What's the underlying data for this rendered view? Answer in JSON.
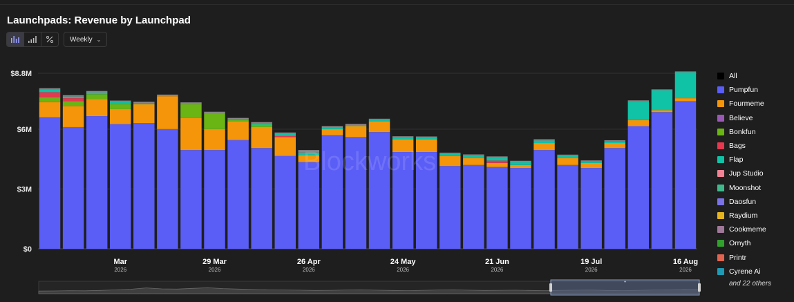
{
  "header": {
    "title": "Launchpads: Revenue by Launchpad"
  },
  "toolbar": {
    "buttons": [
      {
        "name": "stacked-bar-view",
        "icon": "stacked-bar-icon",
        "active": true
      },
      {
        "name": "bar-view",
        "icon": "bar-chart-icon",
        "active": false
      },
      {
        "name": "percent-view",
        "icon": "percent-icon",
        "active": false
      }
    ],
    "interval_label": "Weekly"
  },
  "watermark": "Blockworks",
  "legend": {
    "items": [
      {
        "label": "All",
        "color": "#000000"
      },
      {
        "label": "Pumpfun",
        "color": "#5a5df6"
      },
      {
        "label": "Fourmeme",
        "color": "#f5960a"
      },
      {
        "label": "Believe",
        "color": "#9b59b6"
      },
      {
        "label": "Bonkfun",
        "color": "#6ab414"
      },
      {
        "label": "Bags",
        "color": "#e6384f"
      },
      {
        "label": "Flap",
        "color": "#10c2a6"
      },
      {
        "label": "Jup Studio",
        "color": "#f08296"
      },
      {
        "label": "Moonshot",
        "color": "#40b88c"
      },
      {
        "label": "Daosfun",
        "color": "#7a72e6"
      },
      {
        "label": "Raydium",
        "color": "#e6b41e"
      },
      {
        "label": "Cookmeme",
        "color": "#a07898"
      },
      {
        "label": "Ornyth",
        "color": "#32a02d"
      },
      {
        "label": "Printr",
        "color": "#e06450"
      },
      {
        "label": "Cyrene Ai",
        "color": "#1e9ab4"
      }
    ],
    "more_label": "and 22 others"
  },
  "chart_data": {
    "type": "bar",
    "stacked": true,
    "title": "Launchpads: Revenue by Launchpad",
    "interval": "Weekly",
    "ylim": [
      0,
      8800000
    ],
    "yticks": [
      {
        "value": 0,
        "label": "$0"
      },
      {
        "value": 3000000,
        "label": "$3M"
      },
      {
        "value": 6000000,
        "label": "$6M"
      },
      {
        "value": 8800000,
        "label": "$8.8M"
      }
    ],
    "x_tick_labels": [
      {
        "index": 3.5,
        "label": "Mar",
        "sub": "2026"
      },
      {
        "index": 7.5,
        "label": "29 Mar",
        "sub": "2026"
      },
      {
        "index": 11.5,
        "label": "26 Apr",
        "sub": "2026"
      },
      {
        "index": 15.5,
        "label": "24 May",
        "sub": "2026"
      },
      {
        "index": 19.5,
        "label": "21 Jun",
        "sub": "2026"
      },
      {
        "index": 23.5,
        "label": "19 Jul",
        "sub": "2026"
      },
      {
        "index": 27.5,
        "label": "16 Aug",
        "sub": "2026"
      }
    ],
    "grid": true,
    "legend_position": "right",
    "bar_count": 28,
    "series": [
      {
        "name": "Pumpfun",
        "color": "#5a5df6",
        "values": [
          6600000,
          6100000,
          6650000,
          6250000,
          6300000,
          6000000,
          4950000,
          4950000,
          5450000,
          5050000,
          4650000,
          4350000,
          5700000,
          5600000,
          5850000,
          4850000,
          4850000,
          4150000,
          4200000,
          4100000,
          4050000,
          4950000,
          4200000,
          4050000,
          5050000,
          6150000,
          6850000,
          7400000
        ]
      },
      {
        "name": "Fourmeme",
        "color": "#f5960a",
        "values": [
          750000,
          1050000,
          850000,
          750000,
          950000,
          1650000,
          1600000,
          1050000,
          950000,
          1050000,
          950000,
          350000,
          300000,
          550000,
          550000,
          650000,
          650000,
          500000,
          350000,
          200000,
          150000,
          350000,
          350000,
          250000,
          250000,
          300000,
          100000,
          150000
        ]
      },
      {
        "name": "Believe",
        "color": "#9b59b6",
        "values": [
          0,
          0,
          0,
          0,
          0,
          0,
          0,
          0,
          0,
          0,
          0,
          0,
          0,
          0,
          0,
          0,
          0,
          0,
          0,
          0,
          0,
          0,
          0,
          0,
          0,
          0,
          0,
          0
        ]
      },
      {
        "name": "Bonkfun",
        "color": "#6ab414",
        "values": [
          250000,
          250000,
          250000,
          250000,
          0,
          0,
          700000,
          800000,
          50000,
          120000,
          0,
          0,
          0,
          0,
          0,
          0,
          0,
          0,
          0,
          0,
          0,
          0,
          0,
          0,
          0,
          0,
          0,
          0
        ]
      },
      {
        "name": "Bags",
        "color": "#e6384f",
        "values": [
          250000,
          150000,
          0,
          0,
          0,
          0,
          0,
          0,
          0,
          0,
          50000,
          0,
          0,
          0,
          0,
          0,
          0,
          0,
          0,
          120000,
          0,
          0,
          0,
          0,
          0,
          0,
          0,
          0
        ]
      },
      {
        "name": "Flap",
        "color": "#10c2a6",
        "values": [
          120000,
          80000,
          80000,
          120000,
          50000,
          0,
          0,
          0,
          50000,
          80000,
          120000,
          120000,
          80000,
          50000,
          50000,
          80000,
          80000,
          120000,
          120000,
          150000,
          150000,
          120000,
          120000,
          80000,
          80000,
          950000,
          1000000,
          1300000
        ]
      },
      {
        "name": "Jup Studio",
        "color": "#f08296",
        "values": [
          0,
          0,
          0,
          0,
          0,
          0,
          0,
          0,
          0,
          0,
          0,
          0,
          0,
          0,
          0,
          0,
          0,
          0,
          0,
          0,
          0,
          0,
          0,
          0,
          0,
          0,
          0,
          0
        ]
      },
      {
        "name": "Moonshot",
        "color": "#40b88c",
        "values": [
          0,
          0,
          0,
          0,
          0,
          0,
          0,
          0,
          0,
          0,
          0,
          0,
          0,
          0,
          0,
          0,
          0,
          0,
          0,
          0,
          0,
          0,
          0,
          0,
          0,
          0,
          0,
          0
        ]
      },
      {
        "name": "Daosfun",
        "color": "#7a72e6",
        "values": [
          0,
          0,
          0,
          0,
          0,
          0,
          0,
          0,
          0,
          0,
          0,
          0,
          0,
          0,
          0,
          0,
          0,
          0,
          0,
          0,
          0,
          0,
          0,
          0,
          0,
          0,
          0,
          0
        ]
      },
      {
        "name": "Raydium",
        "color": "#e6b41e",
        "values": [
          0,
          0,
          0,
          0,
          0,
          0,
          0,
          0,
          0,
          0,
          0,
          0,
          0,
          0,
          0,
          0,
          0,
          0,
          0,
          0,
          0,
          0,
          0,
          0,
          0,
          0,
          0,
          0
        ]
      },
      {
        "name": "Cookmeme",
        "color": "#a07898",
        "values": [
          0,
          0,
          0,
          0,
          0,
          0,
          0,
          0,
          0,
          0,
          0,
          0,
          0,
          0,
          0,
          0,
          0,
          0,
          0,
          0,
          0,
          0,
          0,
          0,
          0,
          0,
          0,
          0
        ]
      },
      {
        "name": "Ornyth",
        "color": "#32a02d",
        "values": [
          0,
          0,
          0,
          0,
          0,
          0,
          0,
          0,
          0,
          0,
          0,
          0,
          0,
          0,
          0,
          0,
          0,
          0,
          0,
          0,
          0,
          0,
          0,
          0,
          0,
          0,
          0,
          0
        ]
      },
      {
        "name": "Printr",
        "color": "#e06450",
        "values": [
          0,
          0,
          0,
          0,
          0,
          0,
          0,
          0,
          0,
          0,
          0,
          0,
          0,
          0,
          0,
          0,
          0,
          0,
          0,
          0,
          0,
          0,
          0,
          0,
          0,
          0,
          0,
          0
        ]
      },
      {
        "name": "Cyrene Ai",
        "color": "#1e9ab4",
        "values": [
          0,
          0,
          0,
          0,
          0,
          0,
          0,
          0,
          0,
          0,
          0,
          0,
          0,
          0,
          0,
          0,
          0,
          0,
          0,
          0,
          0,
          0,
          0,
          0,
          0,
          0,
          0,
          0
        ]
      },
      {
        "name": "and 22 others",
        "color": "#888888",
        "values": [
          80000,
          70000,
          80000,
          60000,
          70000,
          80000,
          90000,
          70000,
          60000,
          50000,
          60000,
          130000,
          70000,
          60000,
          70000,
          60000,
          50000,
          50000,
          60000,
          60000,
          60000,
          70000,
          50000,
          50000,
          60000,
          40000,
          40000,
          40000
        ]
      }
    ]
  },
  "navigator": {
    "trend": [
      1.2,
      1.3,
      1.5,
      1.4,
      1.6,
      2.0,
      2.4,
      3.2,
      2.6,
      2.5,
      2.9,
      3.3,
      2.8,
      2.5,
      2.2,
      2.0,
      1.9,
      1.8,
      1.6,
      1.7,
      1.9,
      2.0,
      1.8,
      1.6,
      1.5,
      1.7,
      1.9,
      2.0,
      1.8,
      1.6,
      1.7,
      1.8,
      1.6,
      1.5,
      1.7,
      1.8,
      1.9,
      1.6,
      1.5,
      1.7,
      1.9,
      2.0,
      2.2,
      2.1
    ]
  }
}
